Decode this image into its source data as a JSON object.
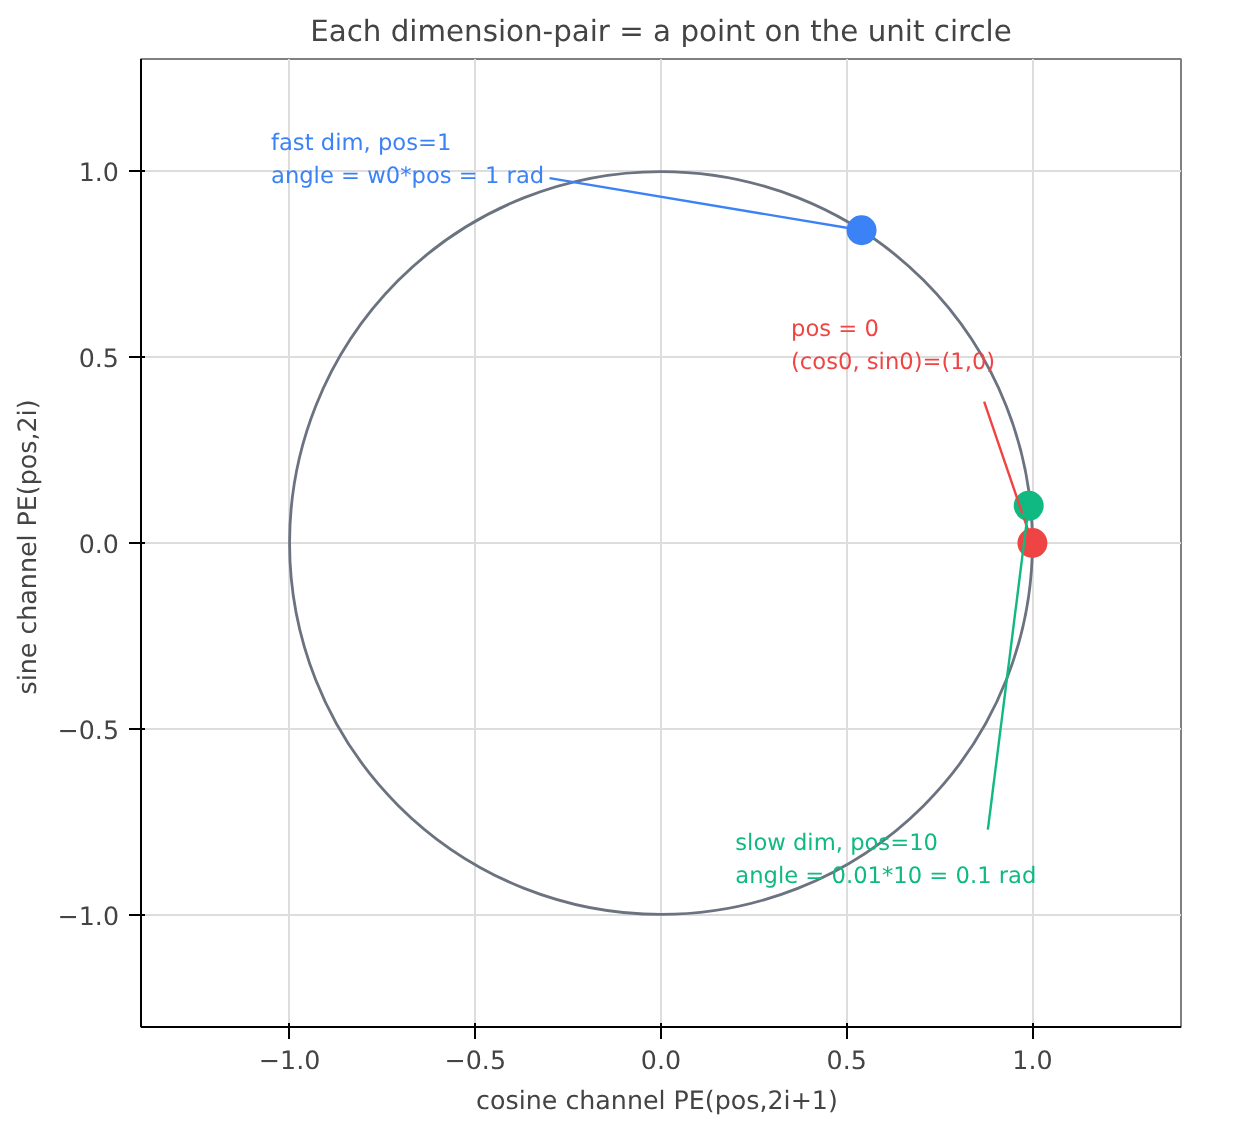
{
  "chart_data": {
    "type": "scatter",
    "title": "Each dimension-pair = a point on the unit circle",
    "xlabel": "cosine channel  PE(pos,2i+1)",
    "ylabel": "sine channel  PE(pos,2i)",
    "xlim": [
      -1.4,
      1.4
    ],
    "ylim": [
      -1.3,
      1.3
    ],
    "xticks": [
      {
        "value": -1,
        "label": "−1.0"
      },
      {
        "value": -0.5,
        "label": "−0.5"
      },
      {
        "value": 0,
        "label": "0.0"
      },
      {
        "value": 0.5,
        "label": "0.5"
      },
      {
        "value": 1,
        "label": "1.0"
      }
    ],
    "yticks": [
      {
        "value": -1,
        "label": "−1.0"
      },
      {
        "value": -0.5,
        "label": "−0.5"
      },
      {
        "value": 0,
        "label": "0.0"
      },
      {
        "value": 0.5,
        "label": "0.5"
      },
      {
        "value": 1,
        "label": "1.0"
      }
    ],
    "grid": true,
    "marker": "circle",
    "series": [
      {
        "color": "#3b82f6",
        "x": [
          0.54
        ],
        "values": [
          0.84
        ]
      },
      {
        "color": "#ef4444",
        "x": [
          1
        ],
        "values": [
          0
        ]
      },
      {
        "color": "#10b981",
        "x": [
          0.99
        ],
        "values": [
          0.1
        ]
      }
    ],
    "annotations": [
      {
        "text": "fast dim, pos=1\nangle = w0*pos = 1 rad",
        "x": 0.54,
        "y": 0.84
      },
      {
        "text": "pos = 0\n(cos0, sin0)=(1,0)",
        "x": 1,
        "y": 0
      },
      {
        "text": "slow dim, pos=10\nangle = 0.01*10 = 0.1 rad",
        "x": 0.99,
        "y": 0.1
      }
    ]
  }
}
